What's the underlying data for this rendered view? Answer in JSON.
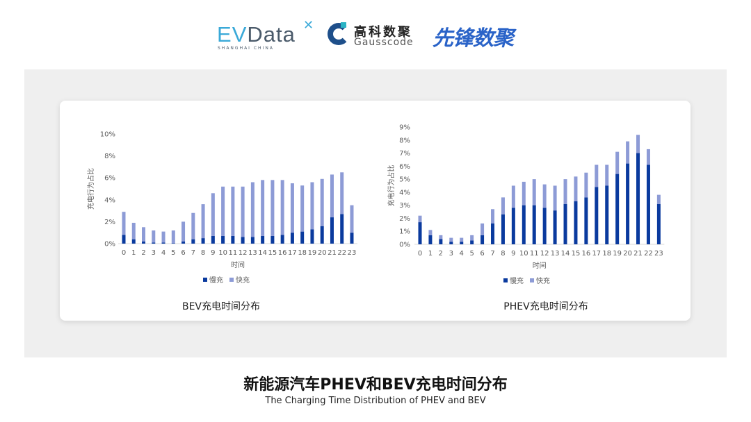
{
  "logos": {
    "evdata": "EVData",
    "evdata_sub": "SHANGHAI CHINA",
    "gauss_cn": "高科数聚",
    "gauss_en": "Gausscode",
    "xianfeng": "先锋数聚"
  },
  "colors": {
    "slow": "#0a3a9e",
    "fast": "#8d9bd6",
    "panel": "#efefef"
  },
  "chart_data": [
    {
      "type": "bar",
      "stacked": true,
      "title": "BEV充电时间分布",
      "xlabel": "时间",
      "ylabel": "充电行为占比",
      "ylim": [
        0,
        10
      ],
      "yticks": [
        "0%",
        "2%",
        "4%",
        "6%",
        "8%",
        "10%"
      ],
      "legend_position": "bottom",
      "categories": [
        "0",
        "1",
        "2",
        "3",
        "4",
        "5",
        "6",
        "7",
        "8",
        "9",
        "10",
        "11",
        "12",
        "13",
        "14",
        "15",
        "16",
        "17",
        "18",
        "19",
        "20",
        "21",
        "22",
        "23"
      ],
      "series": [
        {
          "name": "慢充",
          "values": [
            0.8,
            0.4,
            0.2,
            0.1,
            0.1,
            0.05,
            0.2,
            0.4,
            0.5,
            0.7,
            0.7,
            0.7,
            0.6,
            0.6,
            0.7,
            0.7,
            0.8,
            1.0,
            1.1,
            1.3,
            1.6,
            2.4,
            2.7,
            1.0
          ]
        },
        {
          "name": "快充",
          "values": [
            2.1,
            1.5,
            1.3,
            1.1,
            1.0,
            1.15,
            1.8,
            2.4,
            3.1,
            3.9,
            4.5,
            4.5,
            4.6,
            5.0,
            5.1,
            5.1,
            5.0,
            4.5,
            4.2,
            4.3,
            4.3,
            3.9,
            3.8,
            2.5
          ]
        }
      ]
    },
    {
      "type": "bar",
      "stacked": true,
      "title": "PHEV充电时间分布",
      "xlabel": "时间",
      "ylabel": "充电行为占比",
      "ylim": [
        0,
        9
      ],
      "yticks": [
        "0%",
        "1%",
        "2%",
        "3%",
        "4%",
        "5%",
        "6%",
        "7%",
        "8%",
        "9%"
      ],
      "legend_position": "bottom",
      "categories": [
        "0",
        "1",
        "2",
        "3",
        "4",
        "5",
        "6",
        "7",
        "8",
        "9",
        "10",
        "11",
        "12",
        "13",
        "14",
        "15",
        "16",
        "17",
        "18",
        "19",
        "20",
        "21",
        "22",
        "23"
      ],
      "series": [
        {
          "name": "慢充",
          "values": [
            1.7,
            0.7,
            0.4,
            0.2,
            0.2,
            0.3,
            0.7,
            1.6,
            2.3,
            2.8,
            3.0,
            3.0,
            2.8,
            2.6,
            3.1,
            3.3,
            3.6,
            4.4,
            4.5,
            5.4,
            6.2,
            7.0,
            6.1,
            3.1
          ]
        },
        {
          "name": "快充",
          "values": [
            0.5,
            0.4,
            0.3,
            0.3,
            0.3,
            0.4,
            0.9,
            1.1,
            1.3,
            1.7,
            1.8,
            2.0,
            1.8,
            1.9,
            1.9,
            1.9,
            1.9,
            1.7,
            1.6,
            1.7,
            1.7,
            1.4,
            1.2,
            0.7
          ]
        }
      ]
    }
  ],
  "footer": {
    "title": "新能源汽车PHEV和BEV充电时间分布",
    "subtitle": "The Charging Time Distribution of PHEV and BEV"
  }
}
